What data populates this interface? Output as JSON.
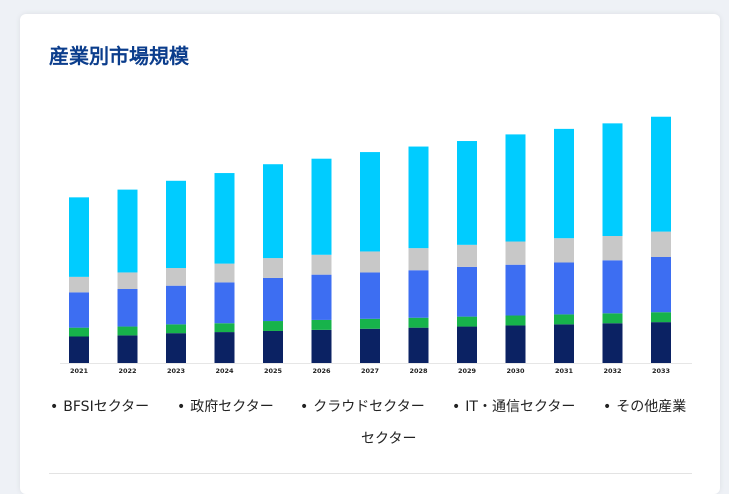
{
  "title": "産業別市場規模",
  "colors": {
    "bfsi": "#0b2263",
    "government": "#17b34b",
    "cloud": "#3d6ef2",
    "it_telecom": "#c8c8c8",
    "other": "#00ccff"
  },
  "legend": {
    "bfsi": "BFSIセクター",
    "government": "政府セクター",
    "cloud": "クラウドセクター",
    "it_telecom": "IT・通信セクター",
    "other": "その他産業",
    "other_wrap": "セクター",
    "bullet": "•"
  },
  "chart_data": {
    "type": "bar",
    "stacked": true,
    "categories": [
      "2021",
      "2022",
      "2023",
      "2024",
      "2025",
      "2026",
      "2027",
      "2028",
      "2029",
      "2030",
      "2031",
      "2032",
      "2033"
    ],
    "series": [
      {
        "name": "BFSIセクター",
        "values": [
          24,
          25,
          27,
          28,
          29,
          30,
          31,
          32,
          33,
          34,
          35,
          36,
          37
        ]
      },
      {
        "name": "政府セクター",
        "values": [
          8,
          8,
          8,
          8,
          9,
          9,
          9,
          9,
          9,
          9,
          9,
          9,
          9
        ]
      },
      {
        "name": "クラウドセクター",
        "values": [
          32,
          34,
          35,
          37,
          39,
          41,
          42,
          43,
          45,
          46,
          47,
          48,
          50
        ]
      },
      {
        "name": "IT・通信セクター",
        "values": [
          14,
          15,
          16,
          17,
          18,
          18,
          19,
          20,
          20,
          21,
          22,
          22,
          23
        ]
      },
      {
        "name": "その他産業",
        "values": [
          72,
          75,
          79,
          82,
          85,
          87,
          90,
          92,
          94,
          97,
          99,
          102,
          104
        ]
      }
    ],
    "ylim": [
      0,
      230
    ],
    "grid": false,
    "legend_position": "bottom"
  }
}
